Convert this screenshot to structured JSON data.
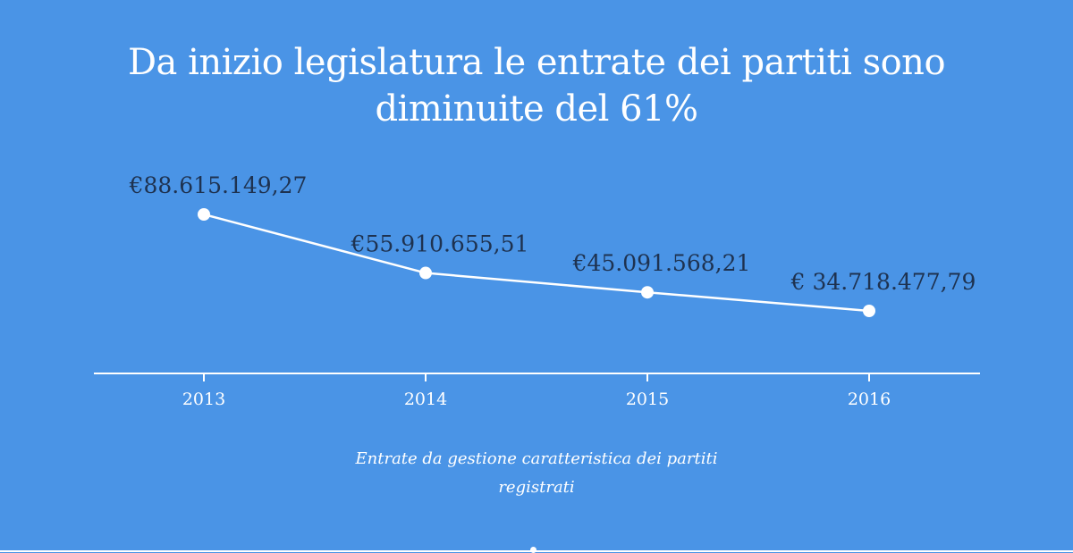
{
  "chart_data": {
    "type": "line",
    "title_lines": [
      "Da inizio legislatura le entrate dei partiti sono",
      "diminuite del 61%"
    ],
    "caption_lines": [
      "Entrate da gestione caratteristica dei partiti",
      "registrati"
    ],
    "categories": [
      "2013",
      "2014",
      "2015",
      "2016"
    ],
    "values": [
      88615149.27,
      55910655.51,
      45091568.21,
      34718477.79
    ],
    "data_labels": [
      "€88.615.149,27",
      "€55.910.655,51",
      "€45.091.568,21",
      "€ 34.718.477,79"
    ],
    "grid": false,
    "colors": {
      "background": "#4a94e6",
      "line": "#ffffff",
      "label": "#1e3250",
      "axis": "#ffffff"
    }
  }
}
